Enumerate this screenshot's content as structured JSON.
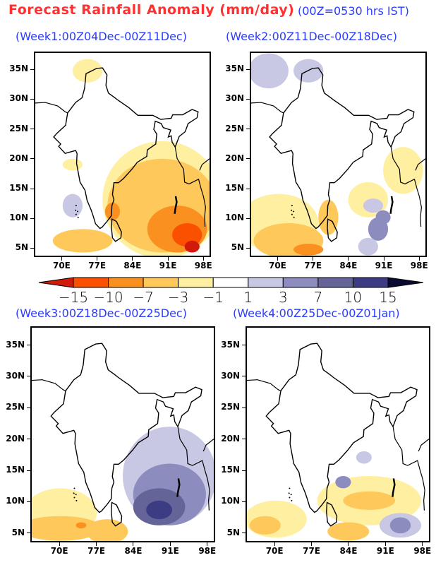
{
  "title": {
    "main": "Forecast Rainfall Anomaly (mm/day)",
    "note": "(00Z=0530 hrs IST)"
  },
  "panels": [
    {
      "title": "(Week1:00Z04Dec-00Z11Dec)",
      "pattern": "dry_bay"
    },
    {
      "title": "(Week2:00Z11Dec-00Z18Dec)",
      "pattern": "mixed_dry_south"
    },
    {
      "title": "(Week3:00Z18Dec-00Z25Dec)",
      "pattern": "wet_bay"
    },
    {
      "title": "(Week4:00Z25Dec-00Z01Jan)",
      "pattern": "mild_mixed"
    }
  ],
  "axes": {
    "lat_labels": [
      "35N",
      "30N",
      "25N",
      "20N",
      "15N",
      "10N",
      "5N"
    ],
    "lat_values": [
      35,
      30,
      25,
      20,
      15,
      10,
      5
    ],
    "lon_labels": [
      "70E",
      "77E",
      "84E",
      "91E",
      "98E"
    ],
    "lon_values": [
      70,
      77,
      84,
      91,
      98
    ],
    "lat_range": [
      3.5,
      38
    ],
    "lon_range": [
      64.5,
      99.5
    ]
  },
  "colorbar": {
    "labels": [
      "-15",
      "-10",
      "-7",
      "-3",
      "-1",
      "1",
      "3",
      "7",
      "10",
      "15"
    ],
    "colors": {
      "below_-15": "#d21a0a",
      "-15_-10": "#fa5000",
      "-10_-7": "#fa9020",
      "-7_-3": "#fec85a",
      "-3_-1": "#fef0a0",
      "-1_1": "#ffffff",
      "1_3": "#c8c8e4",
      "3_7": "#8c8cbe",
      "7_10": "#646498",
      "10_15": "#3c3c84",
      "above_15": "#0a0a32"
    },
    "order": [
      "-15_-10",
      "-10_-7",
      "-7_-3",
      "-3_-1",
      "-1_1",
      "1_3",
      "3_7",
      "7_10",
      "10_15"
    ]
  }
}
